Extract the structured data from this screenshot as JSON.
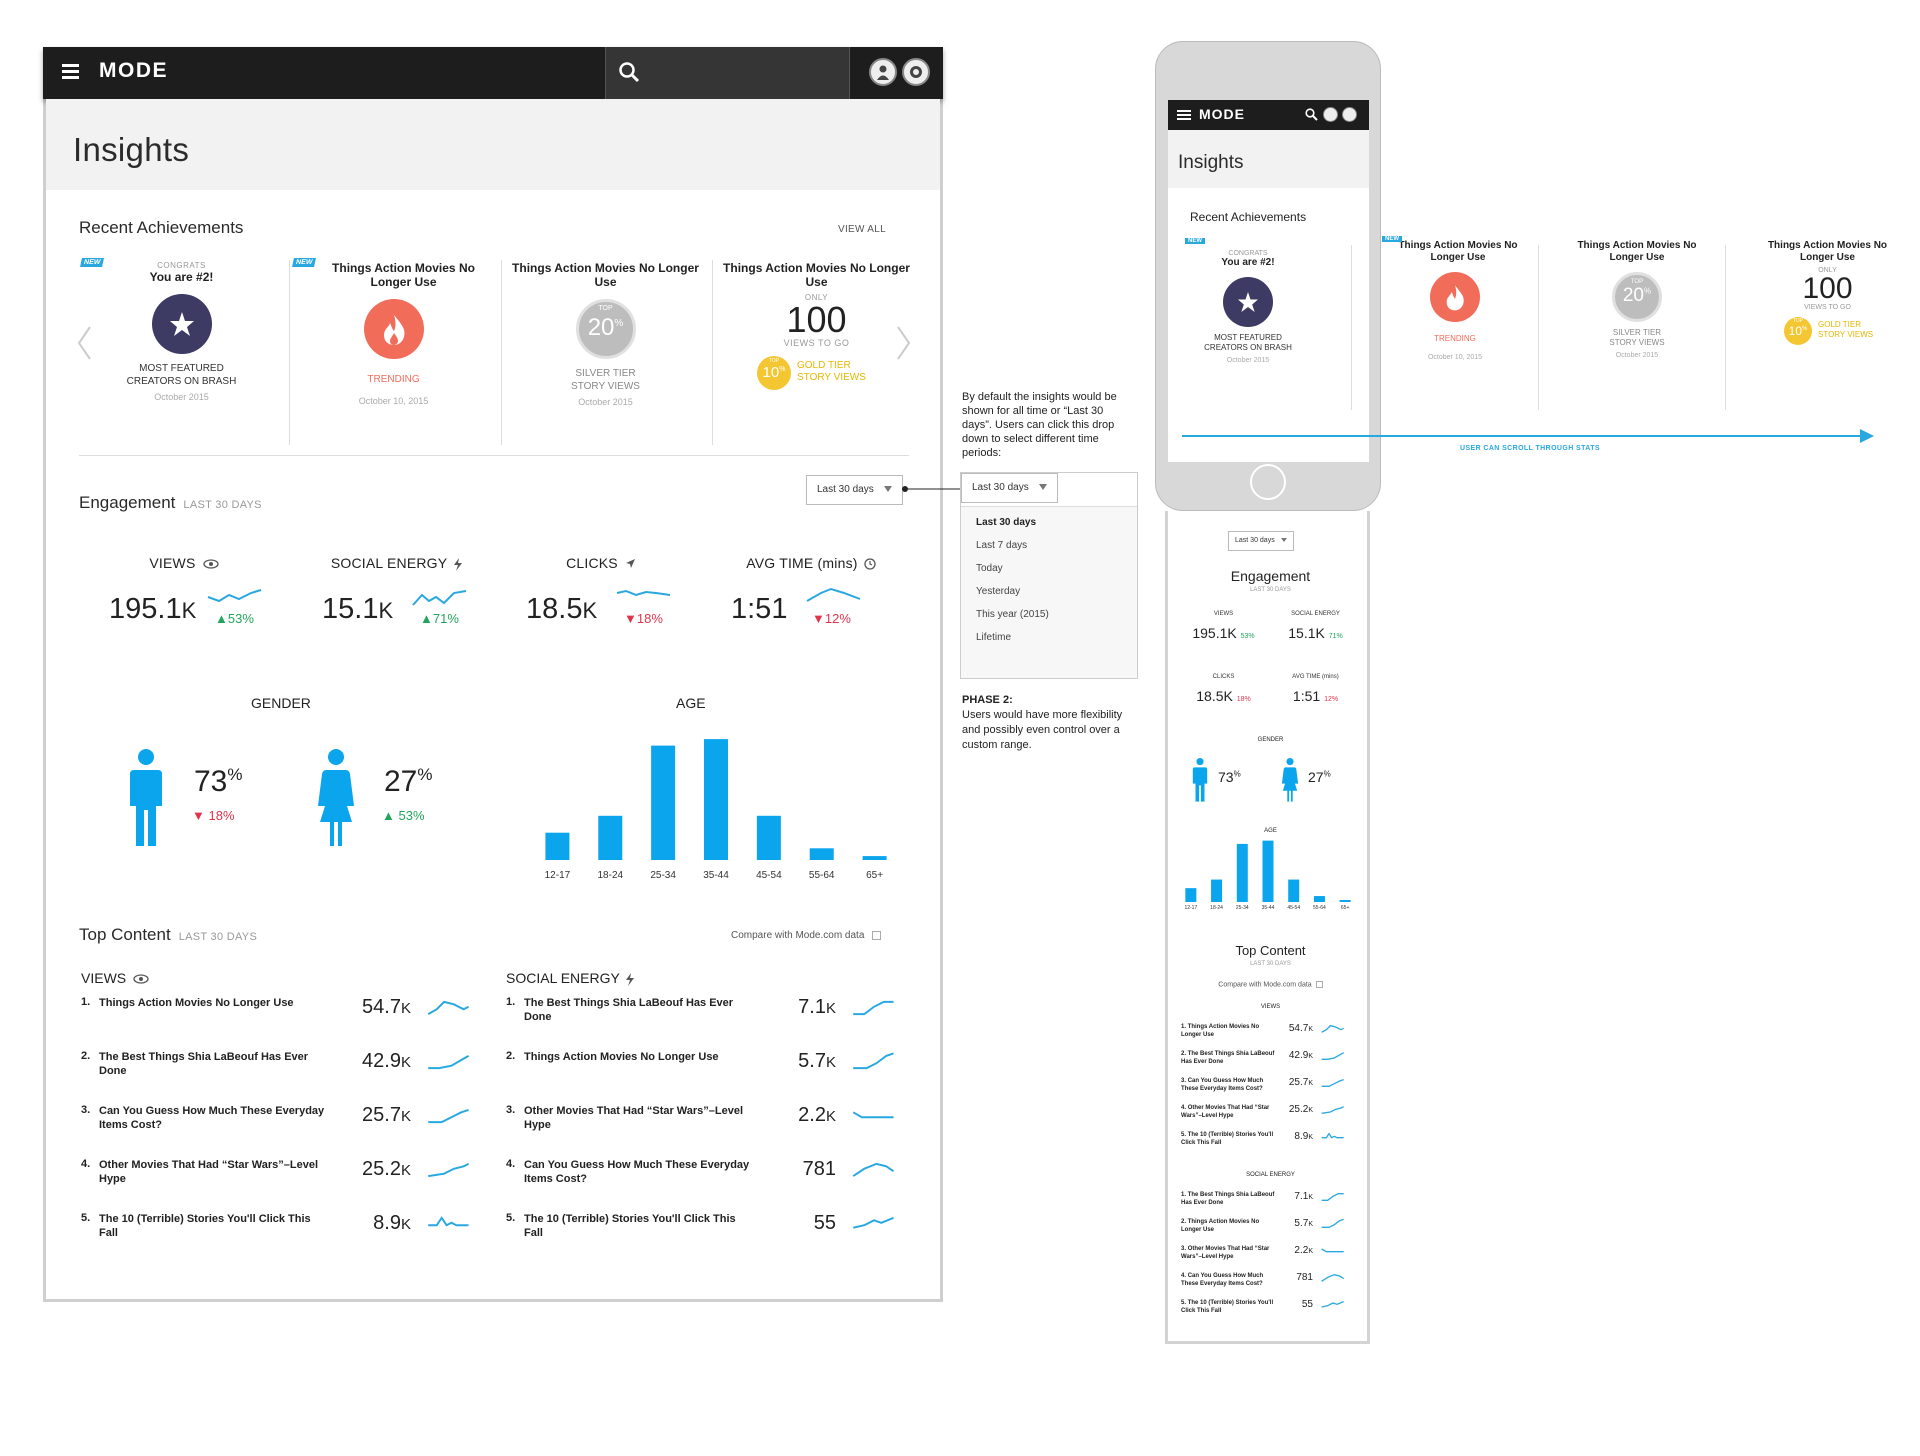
{
  "desktop": {
    "brand": "MODE",
    "page_title": "Insights",
    "achievements": {
      "title": "Recent Achievements",
      "view_all": "VIEW ALL",
      "cards": [
        {
          "new": "NEW",
          "kicker": "CONGRATS",
          "title": "You are #2!",
          "label": "MOST FEATURED\nCREATORS ON BRASH",
          "date": "October 2015",
          "icon": "star-badge-icon",
          "color": "#3d3a63"
        },
        {
          "new": "NEW",
          "title": "Things Action Movies No Longer Use",
          "label": "TRENDING",
          "date": "October 10, 2015",
          "icon": "flame-icon",
          "color": "#f26c5a"
        },
        {
          "title": "Things Action Movies No Longer Use",
          "top_small": "TOP",
          "top_value": "20",
          "top_pct": "%",
          "label": "SILVER TIER\nSTORY VIEWS",
          "date": "October 2015",
          "color": "#bdbdbd"
        },
        {
          "title": "Things Action Movies No Longer Use",
          "only": "ONLY",
          "big": "100",
          "views_to_go": "VIEWS TO GO",
          "gold_small": "TOP",
          "gold_value": "10",
          "gold_pct": "%",
          "label": "GOLD TIER\nSTORY VIEWS",
          "color": "#f3c632"
        }
      ]
    },
    "engagement": {
      "title": "Engagement",
      "subtitle": "LAST 30 DAYS",
      "period": "Last 30 days",
      "metrics": [
        {
          "label": "VIEWS",
          "icon": "eye-icon",
          "value": "195.1",
          "unit": "K",
          "delta": "53%",
          "dir": "up"
        },
        {
          "label": "SOCIAL ENERGY",
          "icon": "bolt-icon",
          "value": "15.1",
          "unit": "K",
          "delta": "71%",
          "dir": "up"
        },
        {
          "label": "CLICKS",
          "icon": "cursor-icon",
          "value": "18.5",
          "unit": "K",
          "delta": "18%",
          "dir": "down"
        },
        {
          "label": "AVG TIME (mins)",
          "icon": "clock-icon",
          "value": "1:51",
          "unit": "",
          "delta": "12%",
          "dir": "down"
        }
      ],
      "gender": {
        "title": "GENDER",
        "male": {
          "pct": "73",
          "sup": "%",
          "delta": "18%",
          "dir": "down"
        },
        "female": {
          "pct": "27",
          "sup": "%",
          "delta": "53%",
          "dir": "up"
        }
      },
      "age": {
        "title": "AGE"
      }
    },
    "top_content": {
      "title": "Top Content",
      "subtitle": "LAST 30 DAYS",
      "compare": "Compare with Mode.com data",
      "views": {
        "heading": "VIEWS",
        "items": [
          {
            "num": "1.",
            "title": "Things Action Movies No Longer Use",
            "value": "54.7",
            "unit": "K"
          },
          {
            "num": "2.",
            "title": "The Best Things Shia LaBeouf Has Ever Done",
            "value": "42.9",
            "unit": "K"
          },
          {
            "num": "3.",
            "title": "Can You Guess How Much These Everyday Items Cost?",
            "value": "25.7",
            "unit": "K"
          },
          {
            "num": "4.",
            "title": "Other Movies That Had “Star Wars”–Level Hype",
            "value": "25.2",
            "unit": "K"
          },
          {
            "num": "5.",
            "title": "The 10 (Terrible) Stories You'll Click This Fall",
            "value": "8.9",
            "unit": "K"
          }
        ]
      },
      "social": {
        "heading": "SOCIAL ENERGY",
        "items": [
          {
            "num": "1.",
            "title": "The Best Things Shia LaBeouf Has Ever Done",
            "value": "7.1",
            "unit": "K"
          },
          {
            "num": "2.",
            "title": "Things Action Movies No Longer Use",
            "value": "5.7",
            "unit": "K"
          },
          {
            "num": "3.",
            "title": "Other Movies That Had “Star Wars”–Level Hype",
            "value": "2.2",
            "unit": "K"
          },
          {
            "num": "4.",
            "title": "Can You Guess How Much These Everyday Items Cost?",
            "value": "781",
            "unit": ""
          },
          {
            "num": "5.",
            "title": "The 10 (Terrible) Stories You'll Click This Fall",
            "value": "55",
            "unit": ""
          }
        ]
      }
    }
  },
  "annotation": {
    "note1": "By default the insights would be shown for all time or “Last 30 days”. Users can click this drop down to select different time periods:",
    "dropdown_value": "Last 30 days",
    "options": [
      "Last 30 days",
      "Last 7 days",
      "Today",
      "Yesterday",
      "This year (2015)",
      "Lifetime"
    ],
    "phase_title": "PHASE 2:",
    "phase_text": "Users would have more flexibility and possibly even control over a custom range."
  },
  "mobile": {
    "brand": "MODE",
    "page_title": "Insights",
    "achievements_title": "Recent Achievements",
    "scroll_label": "USER CAN SCROLL THROUGH STATS",
    "period": "Last 30 days",
    "engagement_title": "Engagement",
    "engagement_sub": "LAST 30 DAYS",
    "top_content_title": "Top Content",
    "top_content_sub": "LAST 30 DAYS",
    "compare": "Compare with Mode.com data"
  },
  "chart_data": {
    "type": "bar",
    "title": "AGE",
    "categories": [
      "12-17",
      "18-24",
      "25-34",
      "35-44",
      "45-54",
      "55-64",
      "65+"
    ],
    "values": [
      21,
      34,
      88,
      93,
      34,
      9,
      3
    ],
    "ylim": [
      0,
      100
    ],
    "color": "#0aa5ec",
    "grid": false
  }
}
